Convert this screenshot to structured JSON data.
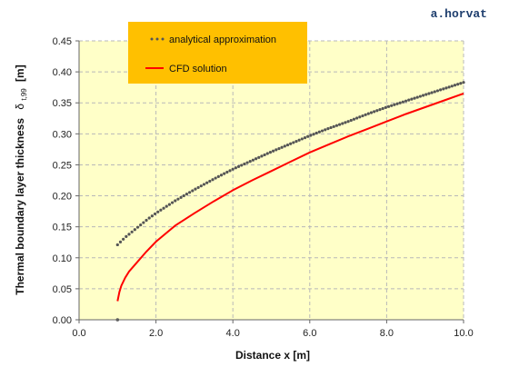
{
  "watermark": "a.horvat",
  "chart_data": {
    "type": "line",
    "xlabel": "Distance x [m]",
    "ylabel": "Thermal boundary layer thickness",
    "ylabel_symbol": "δ",
    "ylabel_subscript": "t,99",
    "ylabel_unit": "[m]",
    "xlim": [
      0,
      10
    ],
    "ylim": [
      0,
      0.45
    ],
    "x_ticks": [
      "0.0",
      "2.0",
      "4.0",
      "6.0",
      "8.0",
      "10.0"
    ],
    "y_ticks": [
      "0.00",
      "0.05",
      "0.10",
      "0.15",
      "0.20",
      "0.25",
      "0.30",
      "0.35",
      "0.40",
      "0.45"
    ],
    "grid": true,
    "legend_position": "top-left",
    "plot_background": "#ffffc8",
    "legend_background": "#ffc000",
    "series": [
      {
        "name": "analytical approximation",
        "style": "dotted",
        "color": "#555555",
        "x": [
          1.0,
          1.1,
          1.2,
          1.3,
          1.4,
          1.5,
          1.6,
          1.8,
          2.0,
          2.25,
          2.5,
          2.75,
          3.0,
          3.5,
          4.0,
          4.5,
          5.0,
          5.5,
          6.0,
          6.5,
          7.0,
          7.5,
          8.0,
          8.5,
          9.0,
          9.5,
          10.0
        ],
        "y": [
          0.121,
          0.127,
          0.133,
          0.138,
          0.143,
          0.148,
          0.153,
          0.163,
          0.172,
          0.182,
          0.192,
          0.201,
          0.21,
          0.227,
          0.243,
          0.257,
          0.271,
          0.284,
          0.297,
          0.309,
          0.32,
          0.332,
          0.343,
          0.353,
          0.363,
          0.373,
          0.383
        ]
      },
      {
        "name": "CFD solution",
        "style": "solid",
        "color": "#ff0000",
        "x": [
          1.0,
          1.05,
          1.1,
          1.2,
          1.3,
          1.5,
          1.75,
          2.0,
          2.5,
          3.0,
          3.5,
          4.0,
          4.5,
          5.0,
          5.5,
          6.0,
          6.5,
          7.0,
          7.5,
          8.0,
          8.5,
          9.0,
          9.5,
          10.0
        ],
        "y": [
          0.03,
          0.045,
          0.055,
          0.068,
          0.078,
          0.092,
          0.11,
          0.126,
          0.152,
          0.172,
          0.191,
          0.209,
          0.225,
          0.24,
          0.255,
          0.27,
          0.283,
          0.296,
          0.308,
          0.32,
          0.332,
          0.343,
          0.354,
          0.365
        ]
      }
    ],
    "extra_point": {
      "x": 1.0,
      "y": 0.0
    }
  }
}
